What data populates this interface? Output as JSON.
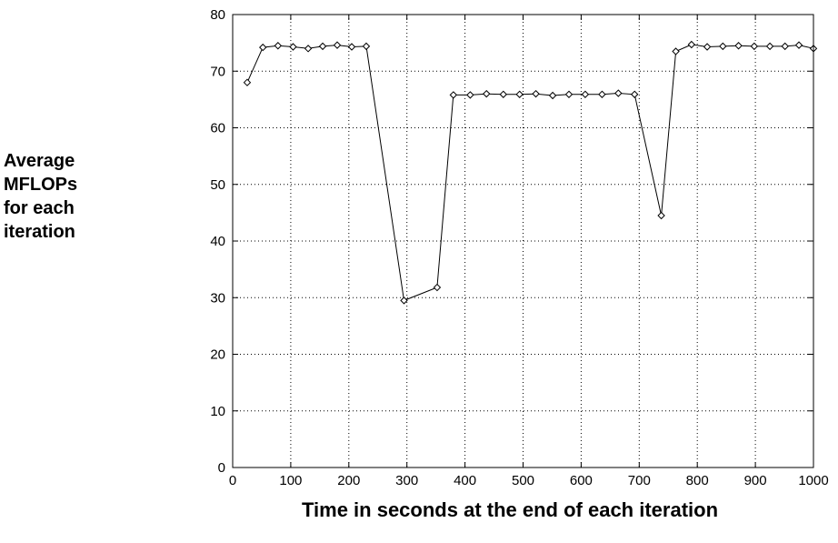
{
  "chart_data": {
    "type": "line",
    "title": "",
    "xlabel": "Time in seconds at the end of each iteration",
    "ylabel_lines": [
      "Average",
      "MFLOPs",
      "for each",
      "iteration"
    ],
    "xlim": [
      0,
      1000
    ],
    "ylim": [
      0,
      80
    ],
    "xticks": [
      0,
      100,
      200,
      300,
      400,
      500,
      600,
      700,
      800,
      900,
      1000
    ],
    "yticks": [
      0,
      10,
      20,
      30,
      40,
      50,
      60,
      70,
      80
    ],
    "grid": true,
    "legend": "none",
    "marker": "diamond",
    "line_color": "#000000",
    "series": [
      {
        "x": [
          25,
          52,
          78,
          104,
          130,
          155,
          180,
          205,
          230,
          295,
          352,
          380,
          409,
          437,
          466,
          494,
          522,
          551,
          579,
          607,
          636,
          664,
          692,
          738,
          763,
          790,
          817,
          844,
          871,
          898,
          925,
          951,
          975,
          1000
        ],
        "y": [
          68,
          74.2,
          74.5,
          74.3,
          74.0,
          74.4,
          74.6,
          74.3,
          74.4,
          29.5,
          31.8,
          65.8,
          65.8,
          66.0,
          65.9,
          65.9,
          66.0,
          65.7,
          65.9,
          65.9,
          65.9,
          66.1,
          65.9,
          44.5,
          73.5,
          74.7,
          74.3,
          74.4,
          74.5,
          74.4,
          74.4,
          74.4,
          74.6,
          74.0
        ]
      }
    ]
  }
}
